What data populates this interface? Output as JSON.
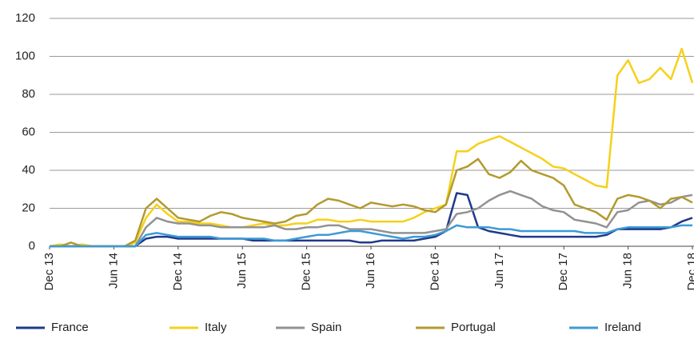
{
  "chart_data": {
    "type": "line",
    "x": [
      0,
      1,
      2,
      3,
      4,
      5,
      6,
      7,
      8,
      9,
      10,
      11,
      12,
      13,
      14,
      15,
      16,
      17,
      18,
      19,
      20,
      21,
      22,
      23,
      24,
      25,
      26,
      27,
      28,
      29,
      30,
      31,
      32,
      33,
      34,
      35,
      36,
      37,
      38,
      39,
      40,
      41,
      42,
      43,
      44,
      45,
      46,
      47,
      48,
      49,
      50,
      51,
      52,
      53,
      54,
      55,
      56,
      57,
      58,
      59,
      60
    ],
    "xlim": [
      0,
      60
    ],
    "xticks": [
      {
        "value": 0,
        "label": "Dec 13"
      },
      {
        "value": 6,
        "label": "Jun 14"
      },
      {
        "value": 12,
        "label": "Dec 14"
      },
      {
        "value": 18,
        "label": "Jun 15"
      },
      {
        "value": 24,
        "label": "Dec 15"
      },
      {
        "value": 30,
        "label": "Jun 16"
      },
      {
        "value": 36,
        "label": "Dec 16"
      },
      {
        "value": 42,
        "label": "Jun 17"
      },
      {
        "value": 48,
        "label": "Dec 17"
      },
      {
        "value": 54,
        "label": "Jun 18"
      },
      {
        "value": 60,
        "label": "Dec 18"
      }
    ],
    "ylim": [
      0,
      120
    ],
    "yticks": [
      0,
      20,
      40,
      60,
      80,
      100,
      120
    ],
    "grid": true,
    "series": [
      {
        "name": "France",
        "color": "#1f3a8a",
        "values": [
          0,
          0,
          0,
          0,
          0,
          0,
          0,
          0,
          0,
          4,
          5,
          5,
          4,
          4,
          4,
          4,
          4,
          4,
          4,
          3,
          3,
          3,
          3,
          3,
          3,
          3,
          3,
          3,
          3,
          2,
          2,
          3,
          3,
          3,
          3,
          4,
          5,
          8,
          28,
          27,
          10,
          8,
          7,
          6,
          5,
          5,
          5,
          5,
          5,
          5,
          5,
          5,
          6,
          9,
          9,
          9,
          9,
          9,
          10,
          13,
          15
        ]
      },
      {
        "name": "Italy",
        "color": "#f5d11a",
        "values": [
          0,
          1,
          0,
          1,
          0,
          0,
          0,
          0,
          2,
          15,
          22,
          17,
          13,
          13,
          12,
          12,
          11,
          10,
          10,
          11,
          12,
          11,
          11,
          12,
          12,
          14,
          14,
          13,
          13,
          14,
          13,
          13,
          13,
          13,
          15,
          18,
          20,
          22,
          50,
          50,
          54,
          56,
          58,
          55,
          52,
          49,
          46,
          42,
          41,
          38,
          35,
          32,
          31,
          90,
          98,
          86,
          88,
          94,
          88,
          104,
          86
        ]
      },
      {
        "name": "Spain",
        "color": "#929292",
        "values": [
          0,
          0,
          0,
          0,
          0,
          0,
          0,
          0,
          0,
          10,
          15,
          13,
          12,
          12,
          11,
          11,
          10,
          10,
          10,
          10,
          10,
          11,
          9,
          9,
          10,
          10,
          11,
          11,
          9,
          9,
          9,
          8,
          7,
          7,
          7,
          7,
          8,
          9,
          17,
          18,
          20,
          24,
          27,
          29,
          27,
          25,
          21,
          19,
          18,
          14,
          13,
          12,
          10,
          18,
          19,
          23,
          24,
          22,
          23,
          26,
          27
        ]
      },
      {
        "name": "Portugal",
        "color": "#b39a2e",
        "values": [
          0,
          0,
          2,
          0,
          0,
          0,
          0,
          0,
          3,
          20,
          25,
          20,
          15,
          14,
          13,
          16,
          18,
          17,
          15,
          14,
          13,
          12,
          13,
          16,
          17,
          22,
          25,
          24,
          22,
          20,
          23,
          22,
          21,
          22,
          21,
          19,
          18,
          22,
          40,
          42,
          46,
          38,
          36,
          39,
          45,
          40,
          38,
          36,
          32,
          22,
          20,
          18,
          14,
          25,
          27,
          26,
          24,
          20,
          25,
          26,
          23
        ]
      },
      {
        "name": "Ireland",
        "color": "#3d9ad6",
        "values": [
          0,
          0,
          0,
          0,
          0,
          0,
          0,
          0,
          0,
          6,
          7,
          6,
          5,
          5,
          5,
          5,
          4,
          4,
          4,
          4,
          4,
          3,
          3,
          4,
          5,
          6,
          6,
          7,
          8,
          8,
          7,
          6,
          5,
          4,
          5,
          5,
          6,
          8,
          11,
          10,
          10,
          10,
          9,
          9,
          8,
          8,
          8,
          8,
          8,
          8,
          7,
          7,
          7,
          9,
          10,
          10,
          10,
          10,
          10,
          11,
          11
        ]
      }
    ]
  }
}
